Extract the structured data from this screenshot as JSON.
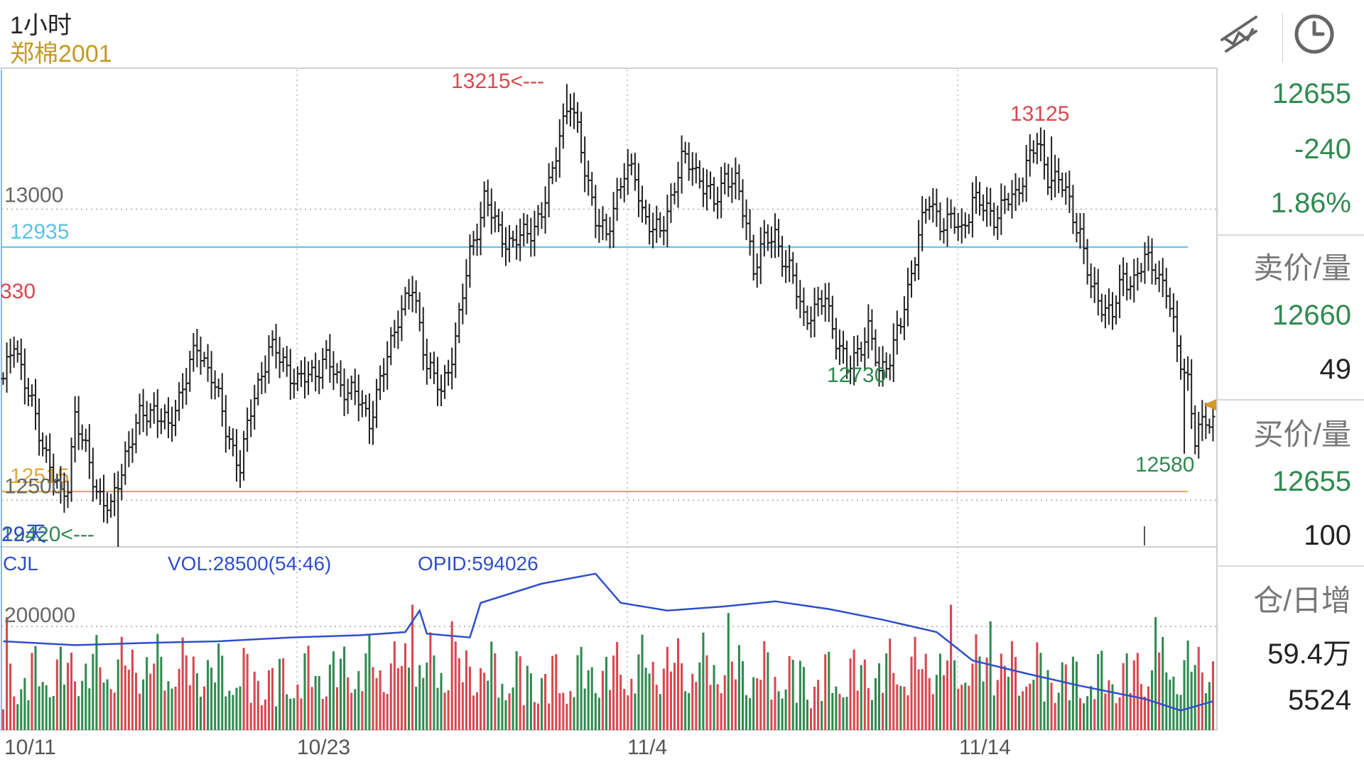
{
  "header": {
    "period": "1小时",
    "contract": "郑棉2001",
    "draw_tool_icon": "trendline-icon",
    "time_icon": "clock-icon"
  },
  "colors": {
    "up": "#d9474f",
    "down": "#2f8a4f",
    "price_text": "#2f8a4f",
    "vol_up": "#d9474f",
    "vol_down": "#2f8a4f",
    "opid_line": "#2f4fc9",
    "blue_level": "#5bc0e8",
    "orange_level": "#e0a63a",
    "bar": "#222222"
  },
  "side_panel": {
    "last": "12655",
    "change": "-240",
    "change_pct": "1.86%",
    "ask_label": "卖价/量",
    "ask_price": "12660",
    "ask_vol": "49",
    "bid_label": "买价/量",
    "bid_price": "12655",
    "bid_vol": "100",
    "oi_label": "仓/日增",
    "oi": "59.4万",
    "oi_change": "5524"
  },
  "volume_header": {
    "name": "CJL",
    "vol": "VOL:28500(54:46)",
    "opid": "OPID:594026"
  },
  "chart_data": {
    "type": "ohlc",
    "price_axis": {
      "min": 12420,
      "max": 13230,
      "ticks": [
        13000,
        12500
      ]
    },
    "volume_axis": {
      "max": 340000,
      "ticks": [
        200000
      ]
    },
    "x_labels": [
      "10/11",
      "10/23",
      "11/4",
      "11/14"
    ],
    "level_lines": [
      {
        "label": "12935",
        "value": 12935,
        "color": "blue"
      },
      {
        "label": "12515",
        "value": 12515,
        "color": "orange"
      }
    ],
    "annotations": [
      {
        "text": "13215<---",
        "price": 13215,
        "color": "up"
      },
      {
        "text": "13125",
        "price": 13125,
        "color": "up"
      },
      {
        "text": "12730",
        "price": 12730,
        "color": "down"
      },
      {
        "text": "12580",
        "price": 12580,
        "color": "down"
      },
      {
        "text": "330",
        "price": 12830,
        "color": "up"
      },
      {
        "text": "12420<---",
        "price": 12420,
        "color": "down"
      },
      {
        "text": "29天",
        "price": 12420,
        "color": "opid"
      }
    ],
    "anchors": [
      [
        0,
        12700
      ],
      [
        3,
        12780
      ],
      [
        6,
        12700
      ],
      [
        10,
        12620
      ],
      [
        13,
        12560
      ],
      [
        16,
        12500
      ],
      [
        18,
        12530
      ],
      [
        20,
        12650
      ],
      [
        22,
        12600
      ],
      [
        26,
        12520
      ],
      [
        30,
        12480
      ],
      [
        34,
        12580
      ],
      [
        38,
        12640
      ],
      [
        42,
        12660
      ],
      [
        46,
        12620
      ],
      [
        50,
        12700
      ],
      [
        54,
        12760
      ],
      [
        58,
        12720
      ],
      [
        62,
        12620
      ],
      [
        66,
        12560
      ],
      [
        70,
        12680
      ],
      [
        74,
        12760
      ],
      [
        78,
        12740
      ],
      [
        82,
        12700
      ],
      [
        86,
        12720
      ],
      [
        90,
        12740
      ],
      [
        94,
        12700
      ],
      [
        98,
        12680
      ],
      [
        102,
        12640
      ],
      [
        106,
        12720
      ],
      [
        110,
        12820
      ],
      [
        114,
        12860
      ],
      [
        118,
        12740
      ],
      [
        122,
        12680
      ],
      [
        126,
        12780
      ],
      [
        130,
        12920
      ],
      [
        134,
        13020
      ],
      [
        138,
        12960
      ],
      [
        142,
        12940
      ],
      [
        146,
        12960
      ],
      [
        150,
        12990
      ],
      [
        153,
        13060
      ],
      [
        155,
        13140
      ],
      [
        158,
        13180
      ],
      [
        160,
        13130
      ],
      [
        163,
        13050
      ],
      [
        165,
        12980
      ],
      [
        168,
        12950
      ],
      [
        170,
        13010
      ],
      [
        173,
        13060
      ],
      [
        176,
        13060
      ],
      [
        178,
        13000
      ],
      [
        181,
        12960
      ],
      [
        183,
        12960
      ],
      [
        186,
        13020
      ],
      [
        189,
        13080
      ],
      [
        192,
        13080
      ],
      [
        195,
        13040
      ],
      [
        198,
        13010
      ],
      [
        201,
        13060
      ],
      [
        204,
        13040
      ],
      [
        207,
        12980
      ],
      [
        209,
        12900
      ],
      [
        212,
        12940
      ],
      [
        215,
        12960
      ],
      [
        218,
        12900
      ],
      [
        220,
        12880
      ],
      [
        223,
        12820
      ],
      [
        226,
        12820
      ],
      [
        229,
        12850
      ],
      [
        232,
        12780
      ],
      [
        235,
        12720
      ],
      [
        238,
        12760
      ],
      [
        241,
        12790
      ],
      [
        244,
        12720
      ],
      [
        247,
        12750
      ],
      [
        250,
        12800
      ],
      [
        252,
        12860
      ],
      [
        255,
        12960
      ],
      [
        258,
        13010
      ],
      [
        261,
        12980
      ],
      [
        264,
        12980
      ],
      [
        267,
        12960
      ],
      [
        270,
        13020
      ],
      [
        273,
        13000
      ],
      [
        276,
        12990
      ],
      [
        279,
        13010
      ],
      [
        282,
        13020
      ],
      [
        285,
        13080
      ],
      [
        288,
        13110
      ],
      [
        291,
        13060
      ],
      [
        294,
        13050
      ],
      [
        297,
        13010
      ],
      [
        300,
        12960
      ],
      [
        303,
        12860
      ],
      [
        306,
        12840
      ],
      [
        309,
        12820
      ],
      [
        312,
        12880
      ],
      [
        315,
        12880
      ],
      [
        318,
        12910
      ],
      [
        321,
        12900
      ],
      [
        324,
        12860
      ],
      [
        327,
        12760
      ],
      [
        330,
        12710
      ],
      [
        332,
        12600
      ],
      [
        335,
        12640
      ],
      [
        337,
        12640
      ]
    ],
    "volume_bars": "generated pattern",
    "opid_line": [
      [
        0,
        650000
      ],
      [
        20,
        645000
      ],
      [
        40,
        648000
      ],
      [
        60,
        650000
      ],
      [
        80,
        655000
      ],
      [
        100,
        658000
      ],
      [
        112,
        662000
      ],
      [
        116,
        690000
      ],
      [
        118,
        660000
      ],
      [
        130,
        655000
      ],
      [
        133,
        700000
      ],
      [
        150,
        725000
      ],
      [
        165,
        738000
      ],
      [
        172,
        700000
      ],
      [
        185,
        690000
      ],
      [
        200,
        695000
      ],
      [
        215,
        702000
      ],
      [
        230,
        692000
      ],
      [
        245,
        678000
      ],
      [
        260,
        662000
      ],
      [
        270,
        625000
      ],
      [
        285,
        608000
      ],
      [
        300,
        592000
      ],
      [
        318,
        575000
      ],
      [
        328,
        560000
      ],
      [
        337,
        572000
      ]
    ]
  }
}
